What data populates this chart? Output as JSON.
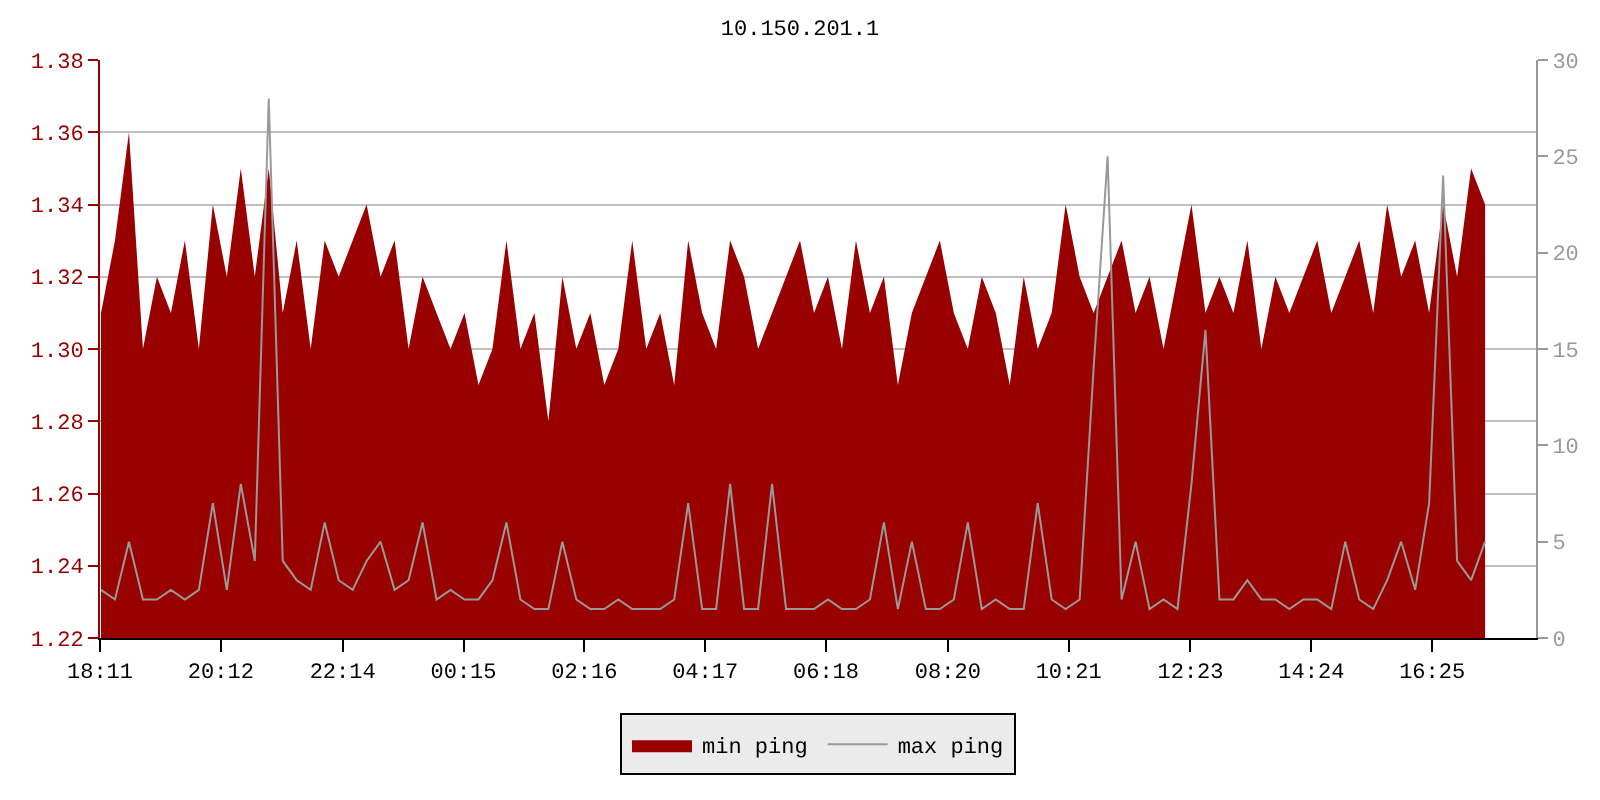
{
  "chart_data": {
    "type": "area",
    "title": "10.150.201.1",
    "x": [
      "--01-01T18:12",
      "--01-01T18:26",
      "--01-01T18:40",
      "--01-01T18:54",
      "--01-01T19:08",
      "--01-01T19:22",
      "--01-01T19:36",
      "--01-01T19:50",
      "--01-01T20:04",
      "--01-01T20:18",
      "--01-01T20:32",
      "--01-01T20:46",
      "--01-01T21:00",
      "--01-01T21:14",
      "--01-01T21:28",
      "--01-01T21:42",
      "--01-01T21:56",
      "--01-01T22:10",
      "--01-01T22:24",
      "--01-01T22:38",
      "--01-01T22:52",
      "--01-01T23:06",
      "--01-01T23:20",
      "--01-01T23:34",
      "--01-01T23:48",
      "--01-02T00:02",
      "--01-02T00:16",
      "--01-02T00:30",
      "--01-02T00:44",
      "--01-02T00:58",
      "--01-02T01:12",
      "--01-02T01:26",
      "--01-02T01:40",
      "--01-02T01:54",
      "--01-02T02:08",
      "--01-02T02:22",
      "--01-02T02:36",
      "--01-02T02:50",
      "--01-02T03:04",
      "--01-02T03:18",
      "--01-02T03:32",
      "--01-02T03:46",
      "--01-02T04:00",
      "--01-02T04:14",
      "--01-02T04:28",
      "--01-02T04:42",
      "--01-02T04:56",
      "--01-02T05:10",
      "--01-02T05:24",
      "--01-02T05:38",
      "--01-02T05:52",
      "--01-02T06:06",
      "--01-02T06:20",
      "--01-02T06:34",
      "--01-02T06:48",
      "--01-02T07:02",
      "--01-02T07:16",
      "--01-02T07:30",
      "--01-02T07:44",
      "--01-02T07:58",
      "--01-02T08:12",
      "--01-02T08:26",
      "--01-02T08:40",
      "--01-02T08:54",
      "--01-02T09:08",
      "--01-02T09:22",
      "--01-02T09:36",
      "--01-02T09:50",
      "--01-02T10:04",
      "--01-02T10:18",
      "--01-02T10:32",
      "--01-02T10:46",
      "--01-02T11:00",
      "--01-02T11:14",
      "--01-02T11:28",
      "--01-02T11:42",
      "--01-02T11:56",
      "--01-02T12:10",
      "--01-02T12:24",
      "--01-02T12:38",
      "--01-02T12:52",
      "--01-02T13:06",
      "--01-02T13:20",
      "--01-02T13:34",
      "--01-02T13:48",
      "--01-02T14:02",
      "--01-02T14:16",
      "--01-02T14:30",
      "--01-02T14:44",
      "--01-02T14:58",
      "--01-02T15:12",
      "--01-02T15:26",
      "--01-02T15:40",
      "--01-02T15:54",
      "--01-02T16:08",
      "--01-02T16:22",
      "--01-02T16:36",
      "--01-02T16:50",
      "--01-02T17:04",
      "--01-02T17:18"
    ],
    "series": [
      {
        "name": "min ping",
        "color": "#990000",
        "values": [
          1.31,
          1.33,
          1.36,
          1.3,
          1.32,
          1.31,
          1.33,
          1.3,
          1.34,
          1.32,
          1.35,
          1.32,
          1.35,
          1.31,
          1.33,
          1.3,
          1.33,
          1.32,
          1.33,
          1.34,
          1.32,
          1.33,
          1.3,
          1.32,
          1.31,
          1.3,
          1.31,
          1.29,
          1.3,
          1.33,
          1.3,
          1.31,
          1.28,
          1.32,
          1.3,
          1.31,
          1.29,
          1.3,
          1.33,
          1.3,
          1.31,
          1.29,
          1.33,
          1.31,
          1.3,
          1.33,
          1.32,
          1.3,
          1.31,
          1.32,
          1.33,
          1.31,
          1.32,
          1.3,
          1.33,
          1.31,
          1.32,
          1.29,
          1.31,
          1.32,
          1.33,
          1.31,
          1.3,
          1.32,
          1.31,
          1.29,
          1.32,
          1.3,
          1.31,
          1.34,
          1.32,
          1.31,
          1.32,
          1.33,
          1.31,
          1.32,
          1.3,
          1.32,
          1.34,
          1.31,
          1.32,
          1.31,
          1.33,
          1.3,
          1.32,
          1.31,
          1.32,
          1.33,
          1.31,
          1.32,
          1.33,
          1.31,
          1.34,
          1.32,
          1.33,
          1.31,
          1.34,
          1.32,
          1.35,
          1.34
        ]
      },
      {
        "name": "max ping",
        "type": "line",
        "axis": "y2",
        "color": "#999999",
        "values": [
          2.5,
          2,
          5,
          2,
          2,
          2.5,
          2,
          2.5,
          7,
          2.5,
          8,
          4,
          28,
          4,
          3,
          2.5,
          6,
          3,
          2.5,
          4,
          5,
          2.5,
          3,
          6,
          2,
          2.5,
          2,
          2,
          3,
          6,
          2,
          1.5,
          1.5,
          5,
          2,
          1.5,
          1.5,
          2,
          1.5,
          1.5,
          1.5,
          2,
          7,
          1.5,
          1.5,
          8,
          1.5,
          1.5,
          8,
          1.5,
          1.5,
          1.5,
          2,
          1.5,
          1.5,
          2,
          6,
          1.5,
          5,
          1.5,
          1.5,
          2,
          6,
          1.5,
          2,
          1.5,
          1.5,
          7,
          2,
          1.5,
          2,
          14,
          25,
          2,
          5,
          1.5,
          2,
          1.5,
          8,
          16,
          2,
          2,
          3,
          2,
          2,
          1.5,
          2,
          2,
          1.5,
          5,
          2,
          1.5,
          3,
          5,
          2.5,
          7,
          24,
          4,
          3,
          5
        ]
      }
    ],
    "xlim": [
      "--01-01T18:11",
      "--01-02T18:09"
    ],
    "xticks": [
      {
        "value": "--01-01T18:11",
        "label": "18:11"
      },
      {
        "value": "--01-01T20:12",
        "label": "20:12"
      },
      {
        "value": "--01-01T22:14",
        "label": "22:14"
      },
      {
        "value": "--01-02T00:15",
        "label": "00:15"
      },
      {
        "value": "--01-02T02:16",
        "label": "02:16"
      },
      {
        "value": "--01-02T04:17",
        "label": "04:17"
      },
      {
        "value": "--01-02T06:18",
        "label": "06:18"
      },
      {
        "value": "--01-02T08:20",
        "label": "08:20"
      },
      {
        "value": "--01-02T10:21",
        "label": "10:21"
      },
      {
        "value": "--01-02T12:23",
        "label": "12:23"
      },
      {
        "value": "--01-02T14:24",
        "label": "14:24"
      },
      {
        "value": "--01-02T16:25",
        "label": "16:25"
      }
    ],
    "ylim": [
      1.22,
      1.38
    ],
    "yticks": [
      {
        "value": 1.22,
        "label": "1.22"
      },
      {
        "value": 1.24,
        "label": "1.24"
      },
      {
        "value": 1.26,
        "label": "1.26"
      },
      {
        "value": 1.28,
        "label": "1.28"
      },
      {
        "value": 1.3,
        "label": "1.30"
      },
      {
        "value": 1.32,
        "label": "1.32"
      },
      {
        "value": 1.34,
        "label": "1.34"
      },
      {
        "value": 1.36,
        "label": "1.36"
      },
      {
        "value": 1.38,
        "label": "1.38"
      }
    ],
    "y2lim": [
      0,
      30
    ],
    "y2ticks": [
      0,
      5,
      10,
      15,
      20,
      25,
      30
    ],
    "grid": "y",
    "legend": "bottom"
  }
}
